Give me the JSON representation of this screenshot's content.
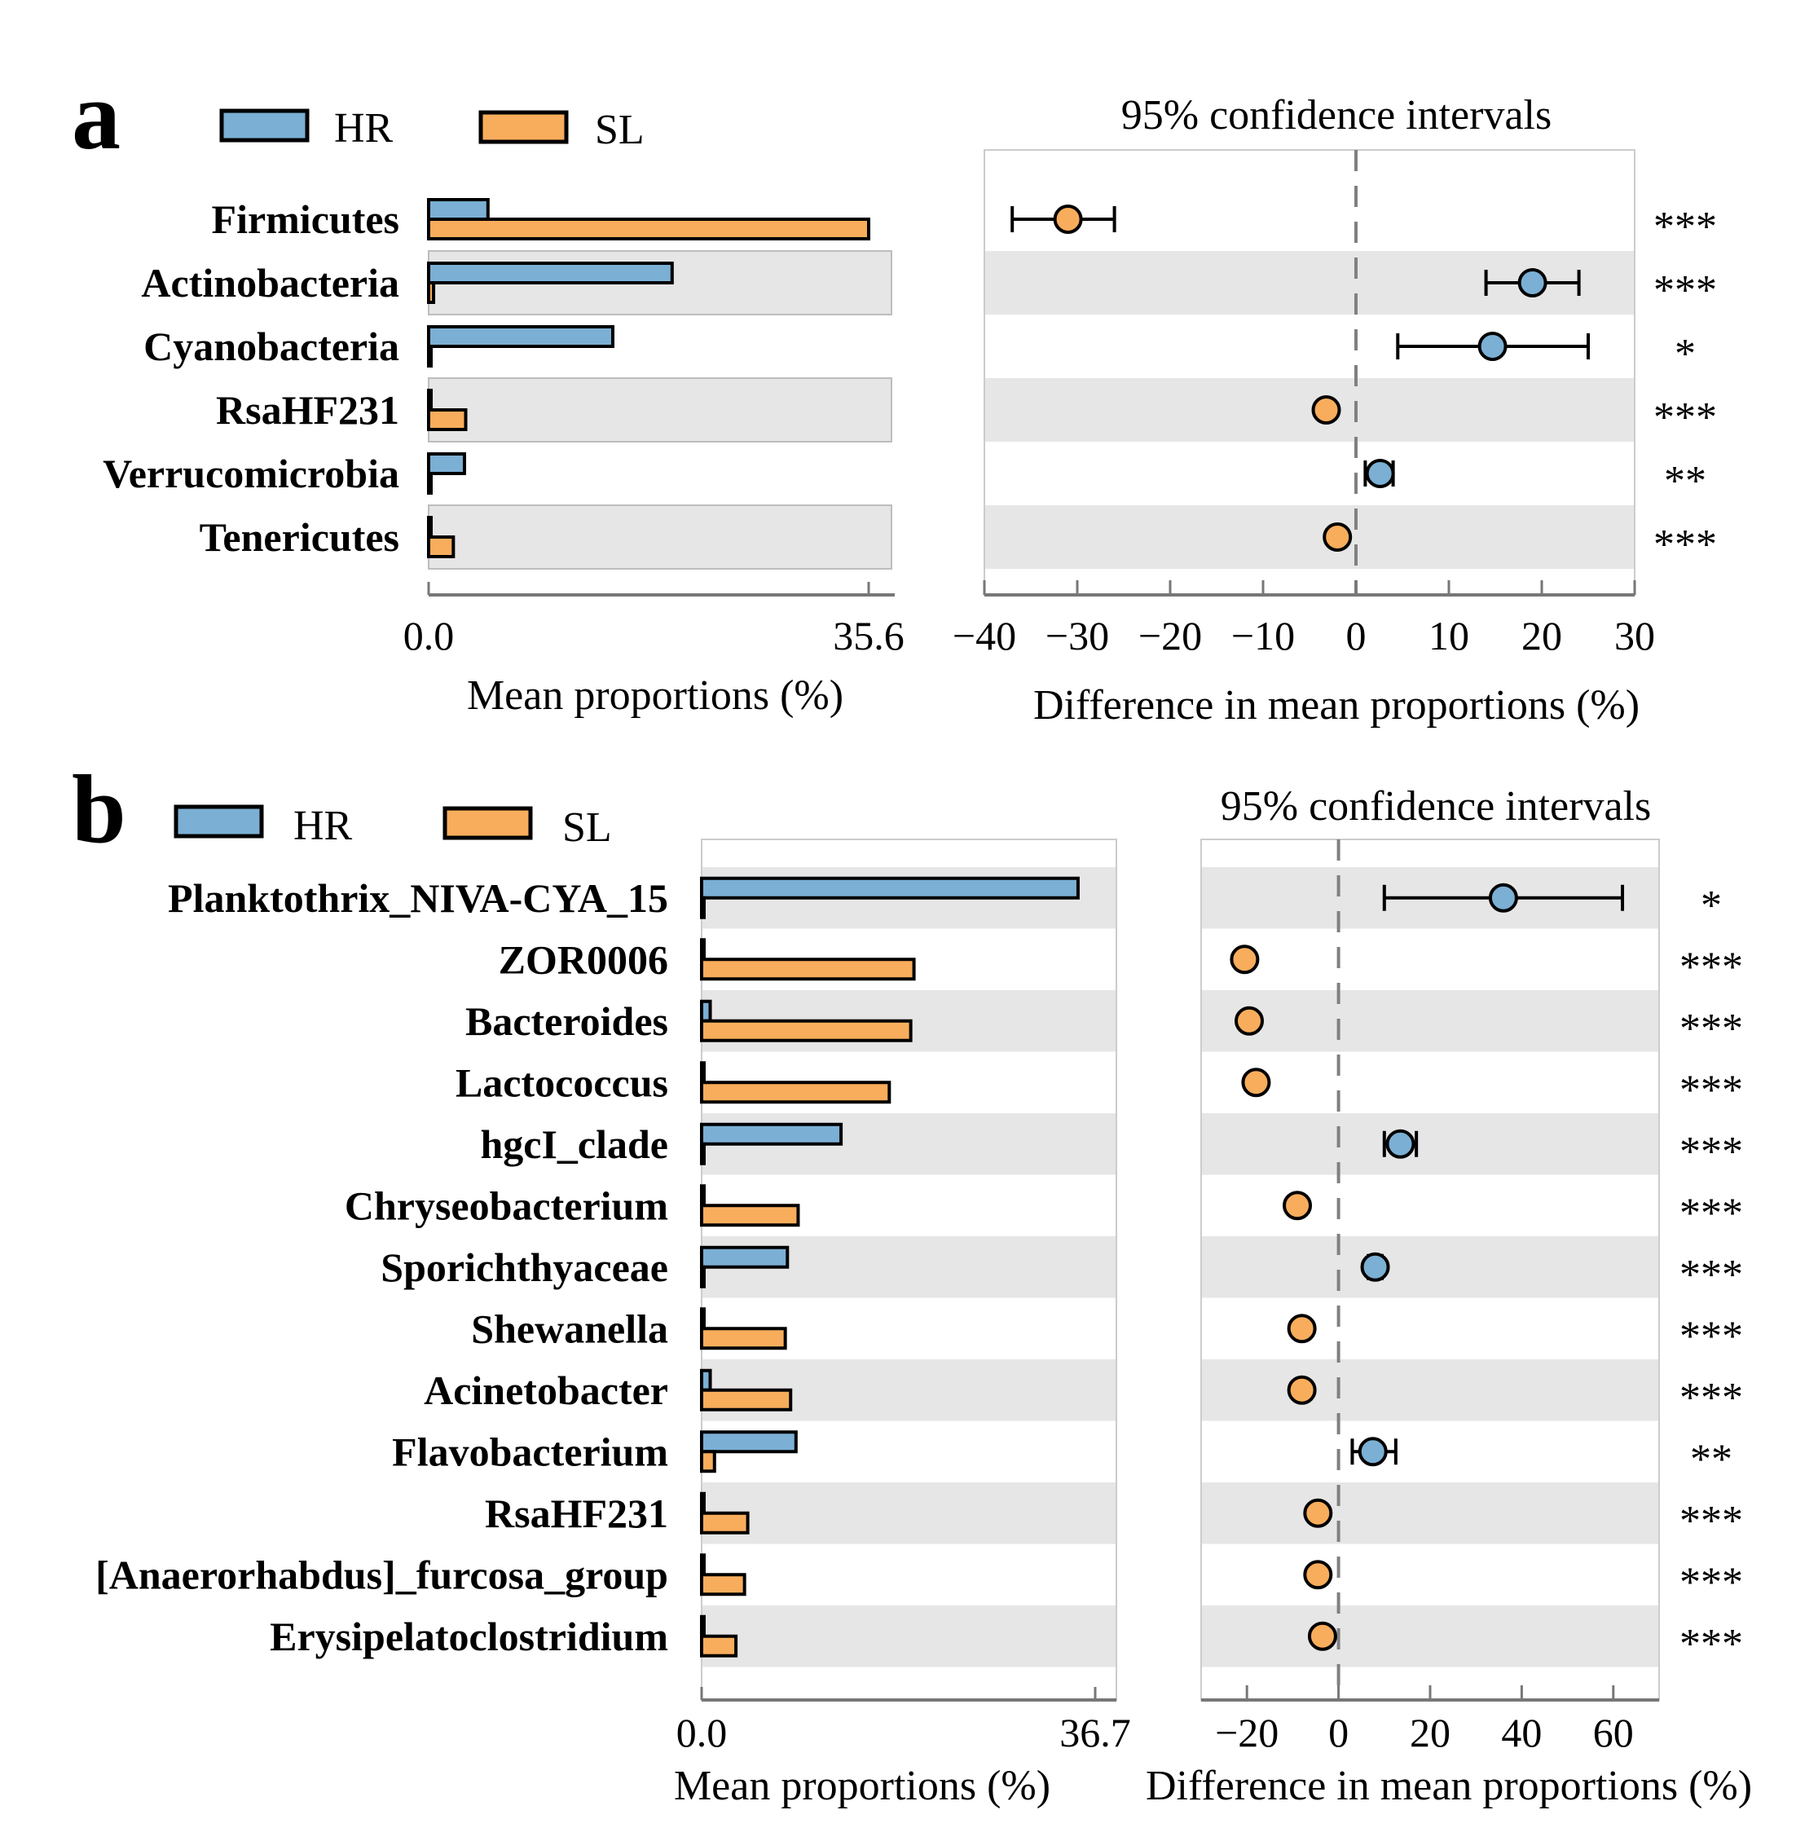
{
  "colors": {
    "HR": "#7bafd4",
    "SL": "#f8ad5c",
    "band": "#e6e6e6",
    "stroke": "#000000",
    "axis": "#777777"
  },
  "chart_data": [
    {
      "type": "bar",
      "panel": "a",
      "legend": [
        "HR",
        "SL"
      ],
      "categories": [
        "Firmicutes",
        "Actinobacteria",
        "Cyanobacteria",
        "RsaHF231",
        "Verrucomicrobia",
        "Tenericutes"
      ],
      "series": [
        {
          "name": "HR",
          "values": [
            4.8,
            19.7,
            14.9,
            0.1,
            2.9,
            0.1
          ]
        },
        {
          "name": "SL",
          "values": [
            35.6,
            0.4,
            0.1,
            3.0,
            0.1,
            2.0
          ]
        }
      ],
      "xlabel": "Mean proportions (%)",
      "xlim": [
        0,
        35.6
      ],
      "xticks": [
        "0.0",
        "35.6"
      ],
      "ci_title": "95% confidence intervals",
      "ci_xlabel": "Difference in mean proportions (%)",
      "ci_xlim": [
        -40,
        30
      ],
      "ci_xticks": [
        "−40",
        "−30",
        "−20",
        "−10",
        "0",
        "10",
        "20",
        "30"
      ],
      "ci_xtick_values": [
        -40,
        -30,
        -20,
        -10,
        0,
        10,
        20,
        30
      ],
      "ci": [
        {
          "diff": -31.0,
          "low": -37.0,
          "high": -26.0,
          "group": "SL",
          "sig": "***"
        },
        {
          "diff": 19.0,
          "low": 14.0,
          "high": 24.0,
          "group": "HR",
          "sig": "***"
        },
        {
          "diff": 14.7,
          "low": 4.5,
          "high": 25.0,
          "group": "HR",
          "sig": "*"
        },
        {
          "diff": -3.2,
          "low": -3.2,
          "high": -3.2,
          "group": "SL",
          "sig": "***"
        },
        {
          "diff": 2.6,
          "low": 1.0,
          "high": 4.0,
          "group": "HR",
          "sig": "**"
        },
        {
          "diff": -2.0,
          "low": -2.0,
          "high": -2.0,
          "group": "SL",
          "sig": "***"
        }
      ]
    },
    {
      "type": "bar",
      "panel": "b",
      "legend": [
        "HR",
        "SL"
      ],
      "categories": [
        "Planktothrix_NIVA-CYA_15",
        "ZOR0006",
        "Bacteroides",
        "Lactococcus",
        "hgcI_clade",
        "Chryseobacterium",
        "Sporichthyaceae",
        "Shewanella",
        "Acinetobacter",
        "Flavobacterium",
        "RsaHF231",
        "[Anaerorhabdus]_furcosa_group",
        "Erysipelatoclostridium"
      ],
      "series": [
        {
          "name": "HR",
          "values": [
            35.1,
            0.1,
            0.8,
            0.1,
            13.0,
            0.1,
            8.0,
            0.1,
            0.8,
            8.8,
            0.1,
            0.1,
            0.1
          ]
        },
        {
          "name": "SL",
          "values": [
            0.1,
            19.8,
            19.5,
            17.5,
            0.1,
            9.0,
            0.1,
            7.8,
            8.3,
            1.2,
            4.3,
            4.0,
            3.2
          ]
        }
      ],
      "xlabel": "Mean proportions (%)",
      "xlim": [
        0,
        36.7
      ],
      "xticks": [
        "0.0",
        "36.7"
      ],
      "ci_title": "95% confidence intervals",
      "ci_xlabel": "Difference in mean proportions (%)",
      "ci_xlim": [
        -30,
        70
      ],
      "ci_xticks": [
        "−20",
        "0",
        "20",
        "40",
        "60"
      ],
      "ci_xtick_values": [
        -20,
        0,
        20,
        40,
        60
      ],
      "ci": [
        {
          "diff": 36.0,
          "low": 10.0,
          "high": 62.0,
          "group": "HR",
          "sig": "*"
        },
        {
          "diff": -20.5,
          "low": -20.5,
          "high": -20.5,
          "group": "SL",
          "sig": "***"
        },
        {
          "diff": -19.5,
          "low": -19.5,
          "high": -19.5,
          "group": "SL",
          "sig": "***"
        },
        {
          "diff": -18.0,
          "low": -18.0,
          "high": -18.0,
          "group": "SL",
          "sig": "***"
        },
        {
          "diff": 13.5,
          "low": 10.0,
          "high": 17.0,
          "group": "HR",
          "sig": "***"
        },
        {
          "diff": -9.0,
          "low": -9.0,
          "high": -9.0,
          "group": "SL",
          "sig": "***"
        },
        {
          "diff": 8.0,
          "low": 6.5,
          "high": 9.5,
          "group": "HR",
          "sig": "***"
        },
        {
          "diff": -8.0,
          "low": -8.0,
          "high": -8.0,
          "group": "SL",
          "sig": "***"
        },
        {
          "diff": -8.0,
          "low": -8.0,
          "high": -8.0,
          "group": "SL",
          "sig": "***"
        },
        {
          "diff": 7.5,
          "low": 3.0,
          "high": 12.5,
          "group": "HR",
          "sig": "**"
        },
        {
          "diff": -4.5,
          "low": -4.5,
          "high": -4.5,
          "group": "SL",
          "sig": "***"
        },
        {
          "diff": -4.5,
          "low": -4.5,
          "high": -4.5,
          "group": "SL",
          "sig": "***"
        },
        {
          "diff": -3.5,
          "low": -3.5,
          "high": -3.5,
          "group": "SL",
          "sig": "***"
        }
      ]
    }
  ]
}
